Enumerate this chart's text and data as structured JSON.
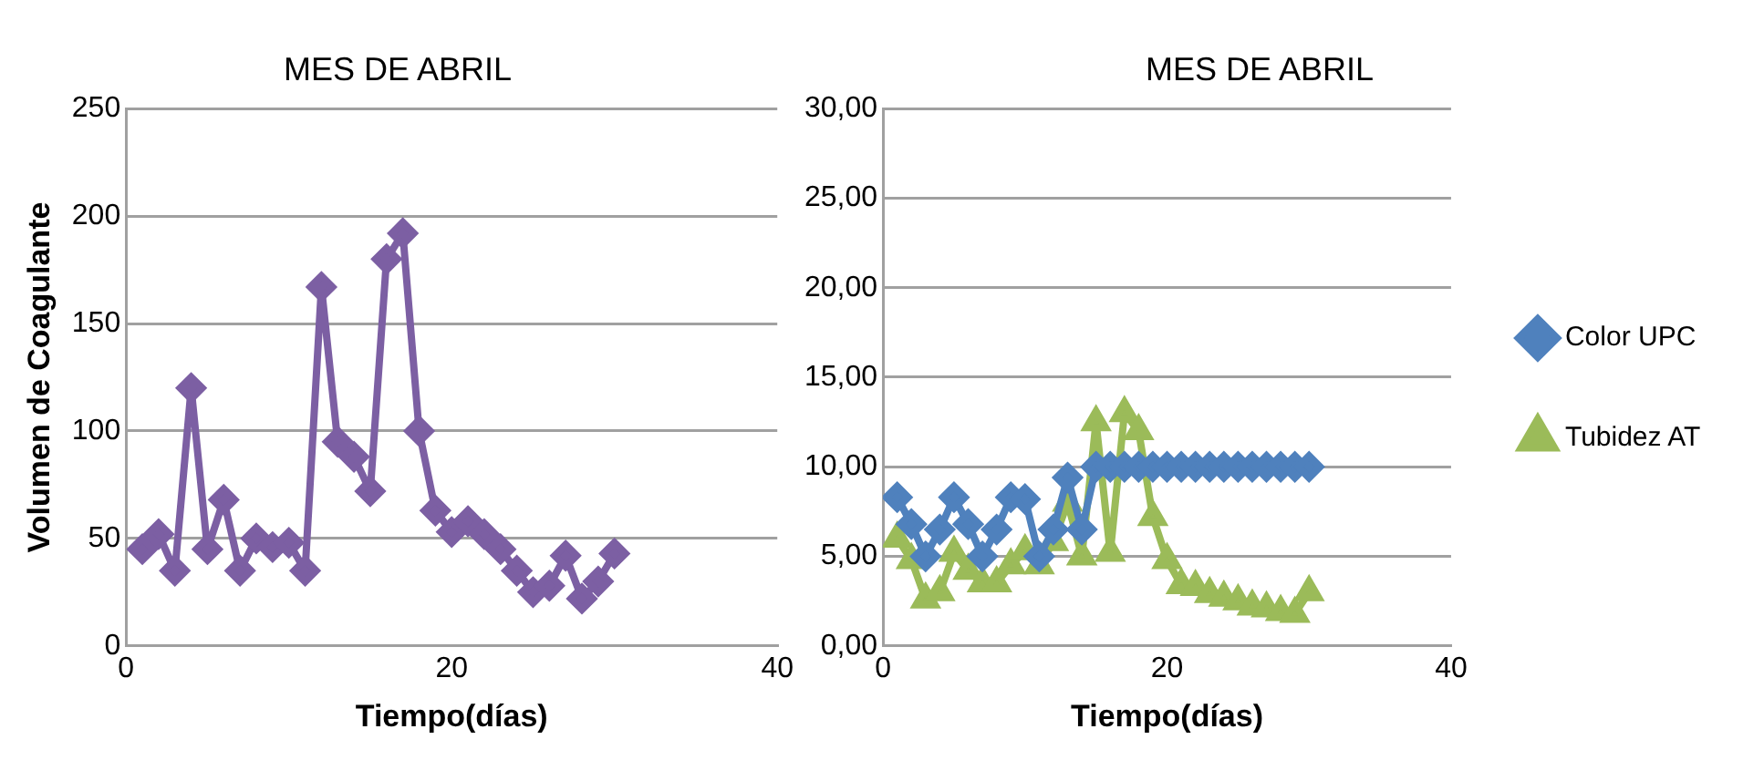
{
  "chart_data": [
    {
      "type": "line",
      "title": "MES DE ABRIL",
      "xlabel": "Tiempo(días)",
      "ylabel": "Volumen de Coagulante",
      "x": [
        1,
        2,
        3,
        4,
        5,
        6,
        7,
        8,
        9,
        10,
        11,
        12,
        13,
        14,
        15,
        16,
        17,
        18,
        19,
        20,
        21,
        22,
        23,
        24,
        25,
        26,
        27,
        28,
        29,
        30
      ],
      "series": [
        {
          "color": "#7c5fa3",
          "values": [
            45,
            52,
            35,
            120,
            45,
            68,
            35,
            50,
            46,
            48,
            35,
            167,
            95,
            88,
            72,
            180,
            192,
            100,
            63,
            53,
            58,
            52,
            45,
            35,
            25,
            28,
            42,
            22,
            30,
            43
          ]
        }
      ],
      "xlim": [
        0,
        40
      ],
      "xticks": [
        0,
        20,
        40
      ],
      "ylim": [
        0,
        250
      ],
      "yticks": [
        0,
        50,
        100,
        150,
        200,
        250
      ],
      "grid": "y",
      "legend": false,
      "marker": "diamond"
    },
    {
      "type": "line",
      "title": "MES DE ABRIL",
      "xlabel": "Tiempo(días)",
      "x": [
        1,
        2,
        3,
        4,
        5,
        6,
        7,
        8,
        9,
        10,
        11,
        12,
        13,
        14,
        15,
        16,
        17,
        18,
        19,
        20,
        21,
        22,
        23,
        24,
        25,
        26,
        27,
        28,
        29,
        30
      ],
      "series": [
        {
          "name": "Tubidez AT",
          "color": "#9bbb59",
          "marker": "triangle",
          "values": [
            6.0,
            4.8,
            2.6,
            3.0,
            5.2,
            4.2,
            3.5,
            3.5,
            4.5,
            5.3,
            4.5,
            5.8,
            8.0,
            5.0,
            12.5,
            5.2,
            13.0,
            12.0,
            7.2,
            4.8,
            3.4,
            3.3,
            2.9,
            2.7,
            2.5,
            2.2,
            2.1,
            1.9,
            1.8,
            3.0
          ]
        },
        {
          "name": "Color UPC",
          "color": "#4f81bd",
          "marker": "diamond",
          "values": [
            8.3,
            6.8,
            5.0,
            6.5,
            8.3,
            6.8,
            5.0,
            6.5,
            8.3,
            8.2,
            5.0,
            6.5,
            9.4,
            6.5,
            10,
            10,
            10,
            10,
            10,
            10,
            10,
            10,
            10,
            10,
            10,
            10,
            10,
            10,
            10,
            10
          ]
        }
      ],
      "xlim": [
        0,
        40
      ],
      "xticks": [
        0,
        20,
        40
      ],
      "ylim": [
        0,
        30
      ],
      "yticks": [
        {
          "value": 0,
          "label": "0,00"
        },
        {
          "value": 5,
          "label": "5,00"
        },
        {
          "value": 10,
          "label": "10,00"
        },
        {
          "value": 15,
          "label": "15,00"
        },
        {
          "value": 20,
          "label": "20,00"
        },
        {
          "value": 25,
          "label": "25,00"
        },
        {
          "value": 30,
          "label": "30,00"
        }
      ],
      "grid": "y",
      "legend": "right"
    }
  ]
}
